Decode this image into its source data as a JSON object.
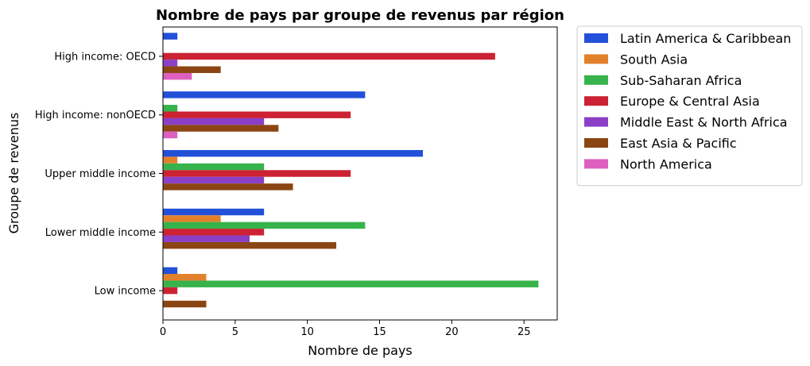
{
  "chart_data": {
    "type": "bar",
    "orientation": "horizontal",
    "title": "Nombre de pays par groupe de revenus par région",
    "xlabel": "Nombre de pays",
    "ylabel": "Groupe de revenus",
    "xlim": [
      0,
      27.3
    ],
    "xticks": [
      0,
      5,
      10,
      15,
      20,
      25
    ],
    "grid": false,
    "legend_position": "outside-top-right",
    "categories": [
      "High income: OECD",
      "High income: nonOECD",
      "Upper middle income",
      "Lower middle income",
      "Low income"
    ],
    "series": [
      {
        "name": "Latin America & Caribbean",
        "color": "#2250d8",
        "values": [
          1,
          14,
          18,
          7,
          1
        ]
      },
      {
        "name": "South Asia",
        "color": "#e2812c",
        "values": [
          0,
          0,
          1,
          4,
          3
        ]
      },
      {
        "name": "Sub-Saharan Africa",
        "color": "#36b34a",
        "values": [
          0,
          1,
          7,
          14,
          26
        ]
      },
      {
        "name": "Europe & Central Asia",
        "color": "#cc2233",
        "values": [
          23,
          13,
          13,
          7,
          1
        ]
      },
      {
        "name": "Middle East & North Africa",
        "color": "#8b3fc6",
        "values": [
          1,
          7,
          7,
          6,
          0
        ]
      },
      {
        "name": "East Asia & Pacific",
        "color": "#8b4513",
        "values": [
          4,
          8,
          9,
          12,
          3
        ]
      },
      {
        "name": "North America",
        "color": "#dd60bf",
        "values": [
          2,
          1,
          0,
          0,
          0
        ]
      }
    ]
  }
}
